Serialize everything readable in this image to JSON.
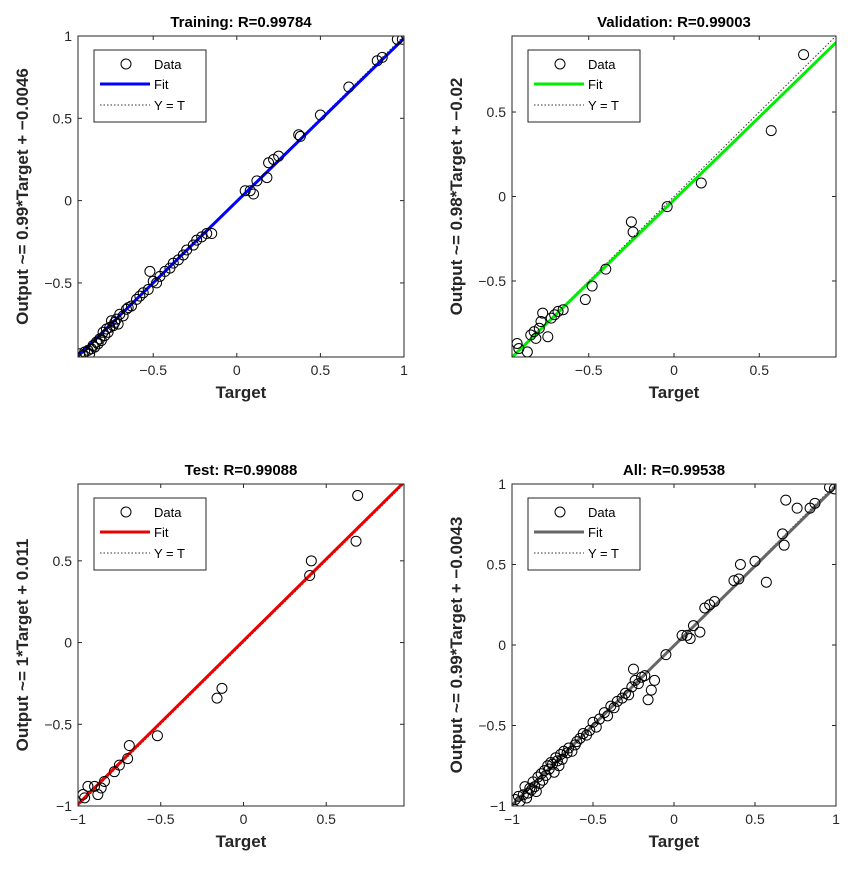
{
  "chart_data": [
    {
      "type": "scatter",
      "title": "Training: R=0.99784",
      "xlabel": "Target",
      "ylabel": "Output ~= 0.99*Target + −0.0046",
      "xlim": [
        -0.95,
        1.0
      ],
      "ylim": [
        -0.95,
        1.0
      ],
      "xticks": [
        -0.5,
        0,
        0.5,
        1
      ],
      "yticks": [
        -0.5,
        0,
        0.5,
        1
      ],
      "xtick_labels": [
        "−0.5",
        "0",
        "0.5",
        "1"
      ],
      "ytick_labels": [
        "−0.5",
        "0",
        "0.5",
        "1"
      ],
      "grid": false,
      "legend": {
        "placement": "top-left",
        "entries": [
          "Data",
          "Fit",
          "Y = T"
        ]
      },
      "fit": {
        "slope": 0.99,
        "intercept": -0.0046
      },
      "fit_color": "#0000ff",
      "points": [
        [
          -0.94,
          -0.93
        ],
        [
          -0.92,
          -0.94
        ],
        [
          -0.91,
          -0.92
        ],
        [
          -0.89,
          -0.91
        ],
        [
          -0.88,
          -0.93
        ],
        [
          -0.87,
          -0.9
        ],
        [
          -0.86,
          -0.88
        ],
        [
          -0.85,
          -0.89
        ],
        [
          -0.84,
          -0.86
        ],
        [
          -0.83,
          -0.87
        ],
        [
          -0.82,
          -0.84
        ],
        [
          -0.81,
          -0.85
        ],
        [
          -0.8,
          -0.8
        ],
        [
          -0.79,
          -0.82
        ],
        [
          -0.78,
          -0.78
        ],
        [
          -0.77,
          -0.8
        ],
        [
          -0.76,
          -0.77
        ],
        [
          -0.75,
          -0.73
        ],
        [
          -0.74,
          -0.76
        ],
        [
          -0.73,
          -0.74
        ],
        [
          -0.72,
          -0.72
        ],
        [
          -0.71,
          -0.75
        ],
        [
          -0.7,
          -0.69
        ],
        [
          -0.68,
          -0.7
        ],
        [
          -0.66,
          -0.66
        ],
        [
          -0.65,
          -0.65
        ],
        [
          -0.63,
          -0.64
        ],
        [
          -0.6,
          -0.6
        ],
        [
          -0.58,
          -0.58
        ],
        [
          -0.56,
          -0.56
        ],
        [
          -0.53,
          -0.54
        ],
        [
          -0.5,
          -0.49
        ],
        [
          -0.48,
          -0.5
        ],
        [
          -0.52,
          -0.43
        ],
        [
          -0.46,
          -0.46
        ],
        [
          -0.43,
          -0.43
        ],
        [
          -0.4,
          -0.41
        ],
        [
          -0.38,
          -0.38
        ],
        [
          -0.35,
          -0.36
        ],
        [
          -0.32,
          -0.33
        ],
        [
          -0.3,
          -0.3
        ],
        [
          -0.26,
          -0.27
        ],
        [
          -0.24,
          -0.24
        ],
        [
          -0.21,
          -0.22
        ],
        [
          -0.18,
          -0.2
        ],
        [
          -0.15,
          -0.2
        ],
        [
          0.05,
          0.06
        ],
        [
          0.08,
          0.06
        ],
        [
          0.1,
          0.04
        ],
        [
          0.12,
          0.12
        ],
        [
          0.19,
          0.23
        ],
        [
          0.22,
          0.25
        ],
        [
          0.18,
          0.14
        ],
        [
          0.25,
          0.27
        ],
        [
          0.37,
          0.4
        ],
        [
          0.38,
          0.39
        ],
        [
          0.5,
          0.52
        ],
        [
          0.67,
          0.69
        ],
        [
          0.84,
          0.85
        ],
        [
          0.87,
          0.87
        ],
        [
          0.96,
          0.98
        ],
        [
          0.99,
          0.98
        ]
      ]
    },
    {
      "type": "scatter",
      "title": "Validation: R=0.99003",
      "xlabel": "Target",
      "ylabel": "Output ~= 0.98*Target + −0.02",
      "xlim": [
        -0.95,
        0.95
      ],
      "ylim": [
        -0.95,
        0.95
      ],
      "xticks": [
        -0.5,
        0,
        0.5
      ],
      "yticks": [
        -0.5,
        0,
        0.5
      ],
      "xtick_labels": [
        "−0.5",
        "0",
        "0.5"
      ],
      "ytick_labels": [
        "−0.5",
        "0",
        "0.5"
      ],
      "grid": false,
      "legend": {
        "placement": "top-left",
        "entries": [
          "Data",
          "Fit",
          "Y = T"
        ]
      },
      "fit": {
        "slope": 0.98,
        "intercept": -0.02
      },
      "fit_color": "#00ee00",
      "points": [
        [
          -0.92,
          -0.87
        ],
        [
          -0.91,
          -0.9
        ],
        [
          -0.86,
          -0.92
        ],
        [
          -0.84,
          -0.82
        ],
        [
          -0.82,
          -0.8
        ],
        [
          -0.81,
          -0.84
        ],
        [
          -0.79,
          -0.78
        ],
        [
          -0.78,
          -0.74
        ],
        [
          -0.77,
          -0.69
        ],
        [
          -0.74,
          -0.83
        ],
        [
          -0.72,
          -0.72
        ],
        [
          -0.7,
          -0.7
        ],
        [
          -0.68,
          -0.68
        ],
        [
          -0.65,
          -0.67
        ],
        [
          -0.52,
          -0.61
        ],
        [
          -0.48,
          -0.53
        ],
        [
          -0.4,
          -0.43
        ],
        [
          -0.25,
          -0.15
        ],
        [
          -0.24,
          -0.21
        ],
        [
          -0.04,
          -0.06
        ],
        [
          0.16,
          0.08
        ],
        [
          0.57,
          0.39
        ],
        [
          0.76,
          0.84
        ]
      ]
    },
    {
      "type": "scatter",
      "title": "Test: R=0.99088",
      "xlabel": "Target",
      "ylabel": "Output ~= 1*Target + 0.011",
      "xlim": [
        -1.0,
        0.97
      ],
      "ylim": [
        -1.0,
        0.97
      ],
      "xticks": [
        -1,
        -0.5,
        0,
        0.5
      ],
      "yticks": [
        -1,
        -0.5,
        0,
        0.5
      ],
      "xtick_labels": [
        "−1",
        "−0.5",
        "0",
        "0.5"
      ],
      "ytick_labels": [
        "−1",
        "−0.5",
        "0",
        "0.5"
      ],
      "grid": false,
      "legend": {
        "placement": "top-left",
        "entries": [
          "Data",
          "Fit",
          "Y = T"
        ]
      },
      "fit": {
        "slope": 1.0,
        "intercept": 0.011
      },
      "fit_color": "#ee0000",
      "points": [
        [
          -0.97,
          -0.93
        ],
        [
          -0.96,
          -0.95
        ],
        [
          -0.94,
          -0.88
        ],
        [
          -0.9,
          -0.88
        ],
        [
          -0.88,
          -0.93
        ],
        [
          -0.86,
          -0.89
        ],
        [
          -0.84,
          -0.85
        ],
        [
          -0.78,
          -0.79
        ],
        [
          -0.75,
          -0.75
        ],
        [
          -0.7,
          -0.71
        ],
        [
          -0.69,
          -0.63
        ],
        [
          -0.52,
          -0.57
        ],
        [
          -0.16,
          -0.34
        ],
        [
          -0.13,
          -0.28
        ],
        [
          0.4,
          0.41
        ],
        [
          0.41,
          0.5
        ],
        [
          0.68,
          0.62
        ],
        [
          0.69,
          0.9
        ]
      ]
    },
    {
      "type": "scatter",
      "title": "All: R=0.99538",
      "xlabel": "Target",
      "ylabel": "Output ~= 0.99*Target + −0.0043",
      "xlim": [
        -1.0,
        1.0
      ],
      "ylim": [
        -1.0,
        1.0
      ],
      "xticks": [
        -1,
        -0.5,
        0,
        0.5,
        1
      ],
      "yticks": [
        -1,
        -0.5,
        0,
        0.5,
        1
      ],
      "xtick_labels": [
        "−1",
        "−0.5",
        "0",
        "0.5",
        "1"
      ],
      "ytick_labels": [
        "−1",
        "−0.5",
        "0",
        "0.5",
        "1"
      ],
      "grid": false,
      "legend": {
        "placement": "top-left",
        "entries": [
          "Data",
          "Fit",
          "Y = T"
        ]
      },
      "fit": {
        "slope": 0.99,
        "intercept": -0.0043
      },
      "fit_color": "#666666",
      "points": [
        [
          -0.98,
          -0.96
        ],
        [
          -0.96,
          -0.94
        ],
        [
          -0.95,
          -0.97
        ],
        [
          -0.93,
          -0.93
        ],
        [
          -0.92,
          -0.88
        ],
        [
          -0.91,
          -0.95
        ],
        [
          -0.9,
          -0.92
        ],
        [
          -0.89,
          -0.89
        ],
        [
          -0.88,
          -0.9
        ],
        [
          -0.87,
          -0.85
        ],
        [
          -0.86,
          -0.88
        ],
        [
          -0.85,
          -0.91
        ],
        [
          -0.84,
          -0.82
        ],
        [
          -0.83,
          -0.86
        ],
        [
          -0.82,
          -0.8
        ],
        [
          -0.81,
          -0.84
        ],
        [
          -0.8,
          -0.78
        ],
        [
          -0.79,
          -0.81
        ],
        [
          -0.78,
          -0.75
        ],
        [
          -0.77,
          -0.77
        ],
        [
          -0.76,
          -0.73
        ],
        [
          -0.75,
          -0.74
        ],
        [
          -0.74,
          -0.79
        ],
        [
          -0.73,
          -0.7
        ],
        [
          -0.72,
          -0.72
        ],
        [
          -0.71,
          -0.75
        ],
        [
          -0.7,
          -0.68
        ],
        [
          -0.69,
          -0.71
        ],
        [
          -0.68,
          -0.66
        ],
        [
          -0.66,
          -0.67
        ],
        [
          -0.65,
          -0.64
        ],
        [
          -0.63,
          -0.66
        ],
        [
          -0.61,
          -0.62
        ],
        [
          -0.6,
          -0.6
        ],
        [
          -0.58,
          -0.58
        ],
        [
          -0.56,
          -0.55
        ],
        [
          -0.54,
          -0.56
        ],
        [
          -0.52,
          -0.53
        ],
        [
          -0.5,
          -0.48
        ],
        [
          -0.48,
          -0.51
        ],
        [
          -0.46,
          -0.46
        ],
        [
          -0.43,
          -0.42
        ],
        [
          -0.41,
          -0.44
        ],
        [
          -0.39,
          -0.38
        ],
        [
          -0.37,
          -0.39
        ],
        [
          -0.35,
          -0.35
        ],
        [
          -0.32,
          -0.33
        ],
        [
          -0.3,
          -0.3
        ],
        [
          -0.28,
          -0.31
        ],
        [
          -0.26,
          -0.26
        ],
        [
          -0.24,
          -0.22
        ],
        [
          -0.22,
          -0.24
        ],
        [
          -0.2,
          -0.2
        ],
        [
          -0.18,
          -0.19
        ],
        [
          -0.16,
          -0.34
        ],
        [
          -0.14,
          -0.28
        ],
        [
          -0.12,
          -0.22
        ],
        [
          -0.25,
          -0.15
        ],
        [
          -0.05,
          -0.06
        ],
        [
          0.05,
          0.06
        ],
        [
          0.08,
          0.06
        ],
        [
          0.1,
          0.04
        ],
        [
          0.12,
          0.12
        ],
        [
          0.16,
          0.08
        ],
        [
          0.19,
          0.23
        ],
        [
          0.22,
          0.25
        ],
        [
          0.25,
          0.27
        ],
        [
          0.37,
          0.4
        ],
        [
          0.4,
          0.41
        ],
        [
          0.41,
          0.5
        ],
        [
          0.5,
          0.52
        ],
        [
          0.57,
          0.39
        ],
        [
          0.67,
          0.69
        ],
        [
          0.68,
          0.62
        ],
        [
          0.69,
          0.9
        ],
        [
          0.76,
          0.85
        ],
        [
          0.84,
          0.85
        ],
        [
          0.87,
          0.88
        ],
        [
          0.96,
          0.98
        ],
        [
          0.99,
          0.97
        ]
      ]
    }
  ]
}
